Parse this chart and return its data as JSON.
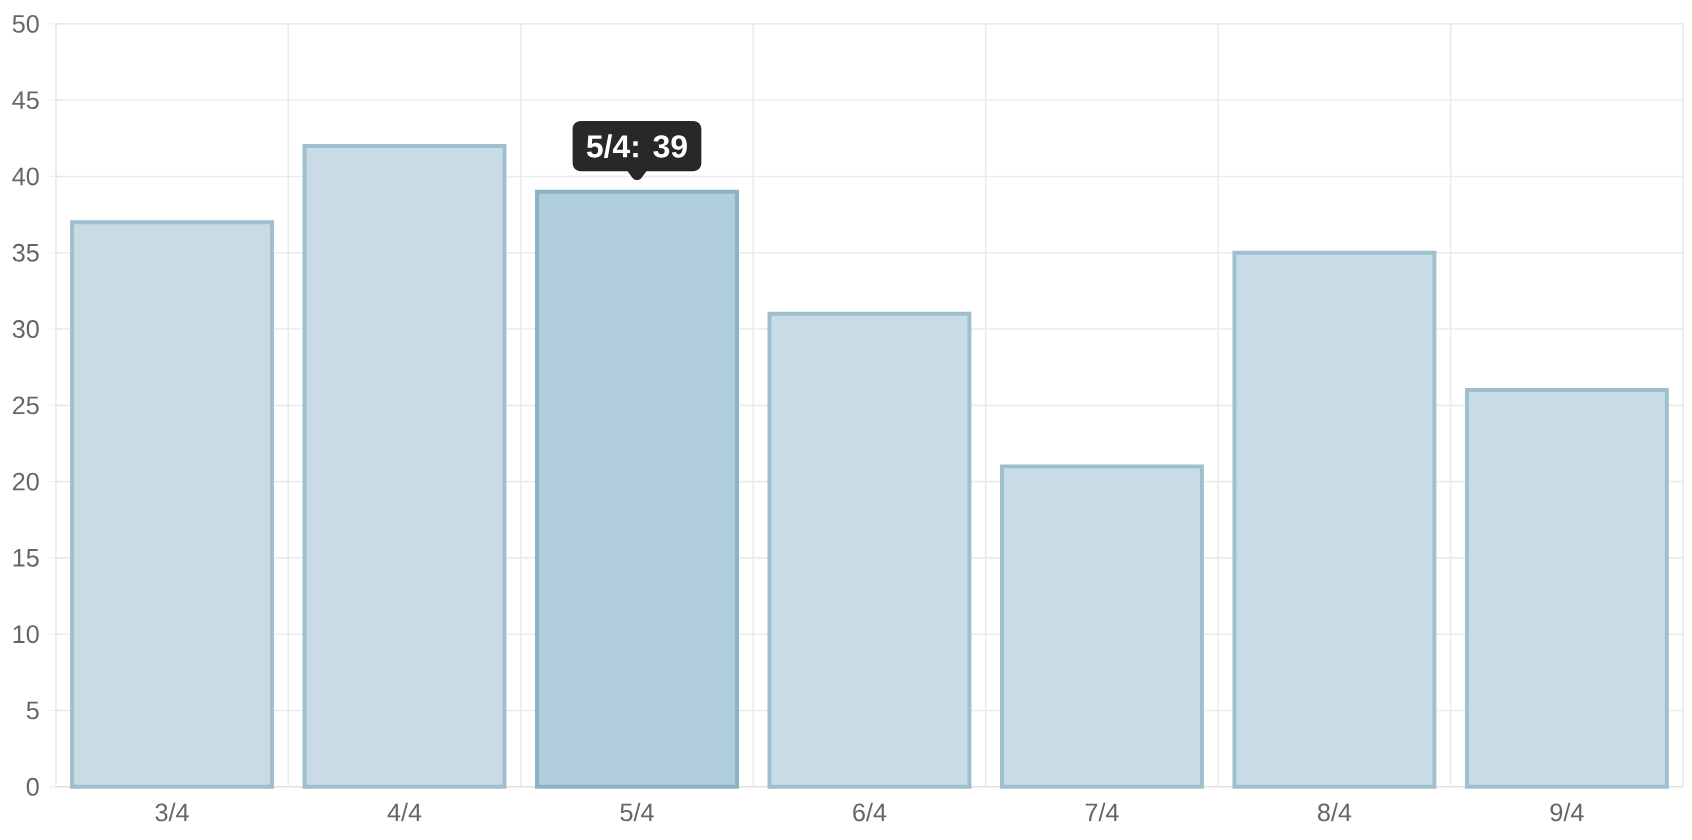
{
  "chart_data": {
    "type": "bar",
    "categories": [
      "3/4",
      "4/4",
      "5/4",
      "6/4",
      "7/4",
      "8/4",
      "9/4"
    ],
    "values": [
      37,
      42,
      39,
      31,
      21,
      35,
      26
    ],
    "colors": [
      "#c9dce5",
      "#c9dce5",
      "#b0cddb",
      "#c9dce5",
      "#c9dce5",
      "#c9dce5",
      "#c9dce5"
    ],
    "ylim": [
      0,
      50
    ],
    "yticks": [
      0,
      5,
      10,
      15,
      20,
      25,
      30,
      35,
      40,
      45,
      50
    ],
    "grid": true,
    "annotations": [
      {
        "text": "5/4: 39",
        "x": "5/4",
        "y": 39
      }
    ]
  }
}
